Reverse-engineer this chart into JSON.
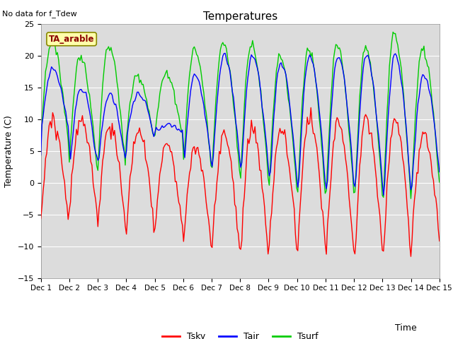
{
  "title": "Temperatures",
  "xlabel": "Time",
  "ylabel": "Temperature (C)",
  "annotation": "No data for f_Tdew",
  "box_label": "TA_arable",
  "ylim": [
    -15,
    25
  ],
  "yticks": [
    -15,
    -10,
    -5,
    0,
    5,
    10,
    15,
    20,
    25
  ],
  "xtick_labels": [
    "Dec 1",
    "Dec 2",
    "Dec 3",
    "Dec 4",
    "Dec 5",
    "Dec 6",
    "Dec 7",
    "Dec 8",
    "Dec 9",
    "Dec 10",
    "Dec 11",
    "Dec 12",
    "Dec 13",
    "Dec 14",
    "Dec 15"
  ],
  "legend_entries": [
    "Tsky",
    "Tair",
    "Tsurf"
  ],
  "legend_colors": [
    "#ff0000",
    "#0000ff",
    "#00cc00"
  ],
  "background_color": "#dcdcdc",
  "n_points": 336,
  "tair_night": [
    8,
    3,
    3,
    7,
    8,
    3,
    3,
    2,
    0,
    -1,
    -1,
    -1,
    -2,
    1
  ],
  "tair_day": [
    18,
    15,
    14,
    14,
    9,
    17,
    20,
    20,
    19,
    20,
    20,
    20,
    20,
    17
  ],
  "tsurf_night": [
    7,
    3,
    3,
    7,
    7.5,
    3,
    2,
    1,
    -0.5,
    -1.5,
    -1.5,
    -1.5,
    -2.5,
    0
  ],
  "tsurf_day": [
    22,
    20,
    21.5,
    17,
    17,
    21,
    22,
    22,
    20,
    21,
    21.5,
    21,
    23.5,
    21
  ],
  "tsky_night": [
    -6,
    -4.5,
    -6,
    -6.5,
    -7,
    -9.5,
    -10.5,
    -11.5,
    -9.5,
    -10,
    -11,
    -11,
    -11.5,
    -9
  ],
  "tsky_day": [
    10,
    10,
    9,
    8,
    6,
    5.5,
    8,
    8.5,
    8.5,
    10,
    9.5,
    10,
    10,
    7.5
  ]
}
